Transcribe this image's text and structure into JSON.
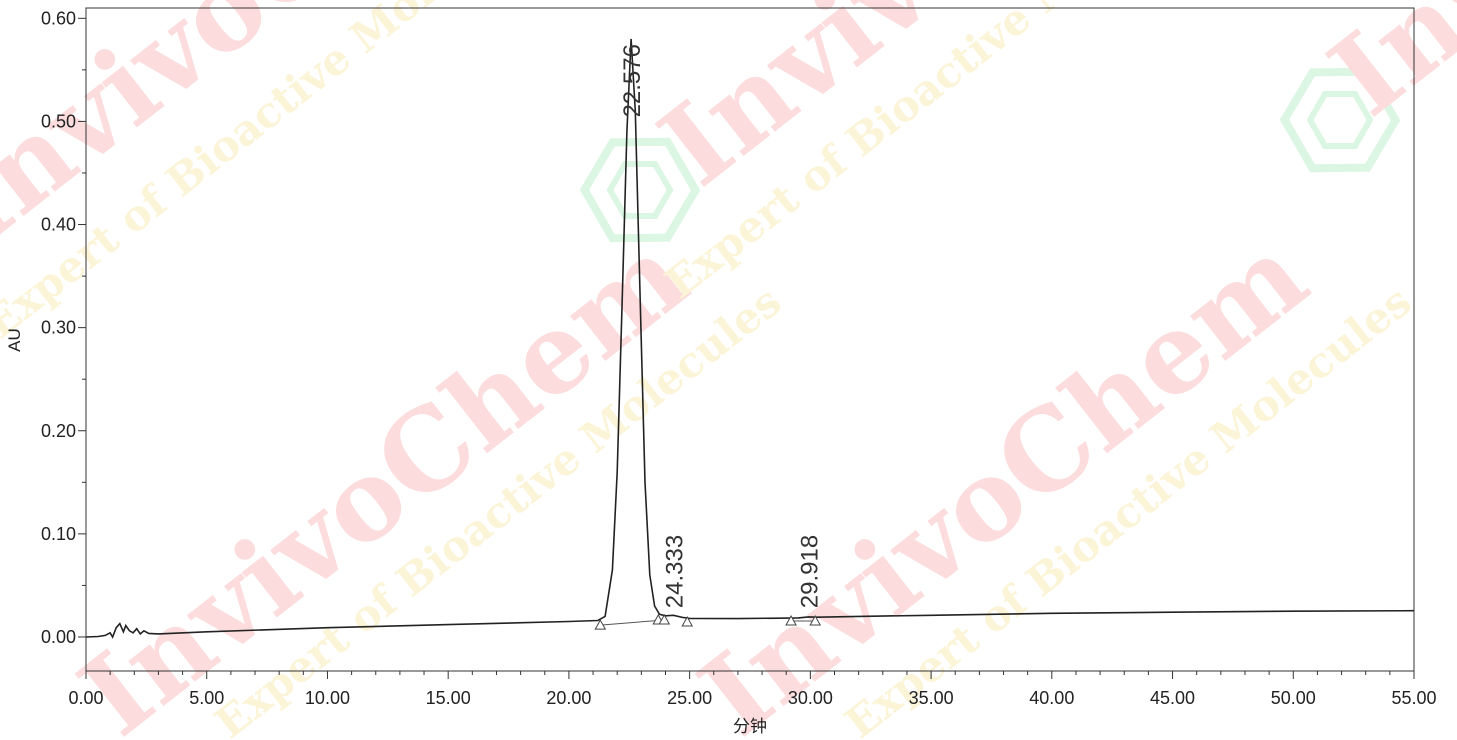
{
  "chart_data": {
    "type": "line",
    "title": "",
    "xlabel": "分钟",
    "ylabel": "AU",
    "xlim": [
      0,
      55
    ],
    "ylim": [
      -0.033,
      0.61
    ],
    "x_ticks": [
      0,
      5,
      10,
      15,
      20,
      25,
      30,
      35,
      40,
      45,
      50,
      55
    ],
    "x_tick_labels": [
      "0.00",
      "5.00",
      "10.00",
      "15.00",
      "20.00",
      "25.00",
      "30.00",
      "35.00",
      "40.00",
      "45.00",
      "50.00",
      "55.00"
    ],
    "y_ticks": [
      0,
      0.1,
      0.2,
      0.3,
      0.4,
      0.5,
      0.6
    ],
    "y_tick_labels": [
      "0.00",
      "0.10",
      "0.20",
      "0.30",
      "0.40",
      "0.50",
      "0.60"
    ],
    "grid": false,
    "series": [
      {
        "x": [
          0,
          0.5,
          0.8,
          1.0,
          1.1,
          1.25,
          1.4,
          1.55,
          1.65,
          1.8,
          1.95,
          2.1,
          2.25,
          2.4,
          2.6,
          3.0,
          5,
          10,
          15,
          20,
          21.2,
          21.5,
          21.8,
          22.0,
          22.2,
          22.4,
          22.576,
          22.75,
          22.95,
          23.15,
          23.35,
          23.55,
          23.75,
          24.0,
          24.333,
          24.7,
          25.0,
          27,
          29.5,
          29.918,
          30.3,
          32,
          35,
          40,
          45,
          50,
          55
        ],
        "y": [
          0.0,
          0.0005,
          0.0015,
          0.004,
          0.0,
          0.009,
          0.013,
          0.005,
          0.011,
          0.006,
          0.004,
          0.008,
          0.003,
          0.006,
          0.0035,
          0.003,
          0.005,
          0.009,
          0.012,
          0.015,
          0.016,
          0.02,
          0.065,
          0.16,
          0.32,
          0.49,
          0.58,
          0.51,
          0.33,
          0.15,
          0.06,
          0.03,
          0.022,
          0.0205,
          0.021,
          0.019,
          0.018,
          0.0178,
          0.0185,
          0.0195,
          0.0192,
          0.02,
          0.021,
          0.023,
          0.024,
          0.025,
          0.0255
        ]
      }
    ],
    "peak_labels": [
      {
        "label": "22.576",
        "x": 22.576,
        "y": 0.5
      },
      {
        "label": "24.333",
        "x": 24.333,
        "y": 0.024
      },
      {
        "label": "29.918",
        "x": 29.918,
        "y": 0.024
      }
    ],
    "integration_markers": {
      "x": [
        21.3,
        23.7,
        23.95,
        24.9,
        29.2,
        30.2
      ],
      "y": [
        0.0115,
        0.0165,
        0.0165,
        0.0145,
        0.0155,
        0.0155
      ]
    },
    "baselines": [
      {
        "x": [
          21.3,
          23.95
        ],
        "y": [
          0.0115,
          0.0165
        ]
      },
      {
        "x": [
          29.2,
          30.2
        ],
        "y": [
          0.0155,
          0.0155
        ]
      }
    ]
  },
  "watermarks": [
    {
      "text": "InvivoChem",
      "color": "#e8202a"
    },
    {
      "text": "Expert of Bioactive Molecules",
      "color": "#e6b800"
    }
  ]
}
